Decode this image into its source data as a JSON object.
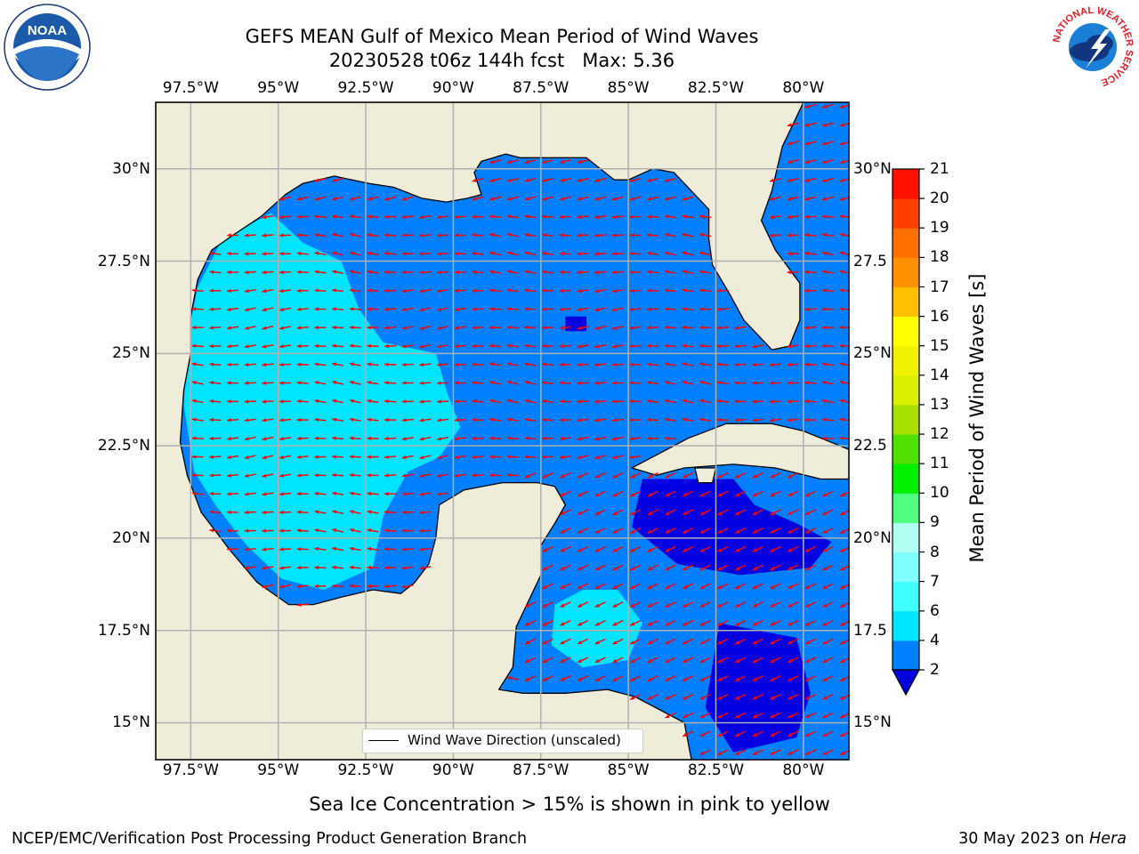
{
  "title": {
    "line1": "GEFS MEAN Gulf of Mexico Mean Period of Wind Waves",
    "line2": "20230528 t06z 144h fcst   Max: 5.36"
  },
  "map": {
    "extent": {
      "lon_min": -98.5,
      "lon_max": -78.7,
      "lat_min": 14.0,
      "lat_max": 31.8
    },
    "lon_ticks": [
      "97.5°W",
      "95°W",
      "92.5°W",
      "90°W",
      "87.5°W",
      "85°W",
      "82.5°W",
      "80°W"
    ],
    "lat_ticks": [
      "30°N",
      "27.5°N",
      "25°N",
      "22.5°N",
      "20°N",
      "17.5°N",
      "15°N"
    ],
    "right_lat_ticks": [
      "30°N",
      "27.5",
      "25°N",
      "22.5",
      "20°N",
      "17.5",
      "15°N"
    ],
    "colors": {
      "land": "#efedda",
      "coast": "#000000",
      "grid": "#b0b0b0",
      "arrow": "#ff0000"
    },
    "legend_label": "Wind Wave Direction (unscaled)"
  },
  "colorbar": {
    "label": "Mean Period of Wind Waves [s]",
    "levels": [
      "2",
      "4",
      "6",
      "7",
      "8",
      "9",
      "10",
      "11",
      "12",
      "13",
      "14",
      "15",
      "16",
      "17",
      "18",
      "19",
      "20",
      "21"
    ],
    "colors": [
      "#0080ff",
      "#00e5ff",
      "#40ffff",
      "#80ffff",
      "#b0fff2",
      "#50ff80",
      "#00f000",
      "#50e000",
      "#a8e000",
      "#d8f000",
      "#f0f000",
      "#ffff00",
      "#ffc000",
      "#ff9000",
      "#ff7000",
      "#ff4000",
      "#ff1000"
    ],
    "under_color": "#0000e0"
  },
  "footer": {
    "note": "Sea Ice Concentration > 15% is shown in pink to yellow",
    "left": "NCEP/EMC/Verification Post Processing Product Generation Branch",
    "right_date": "30 May 2023 on ",
    "right_host": "Hera"
  },
  "logos": {
    "left": "NOAA",
    "right": "NATIONAL WEATHER SERVICE"
  }
}
